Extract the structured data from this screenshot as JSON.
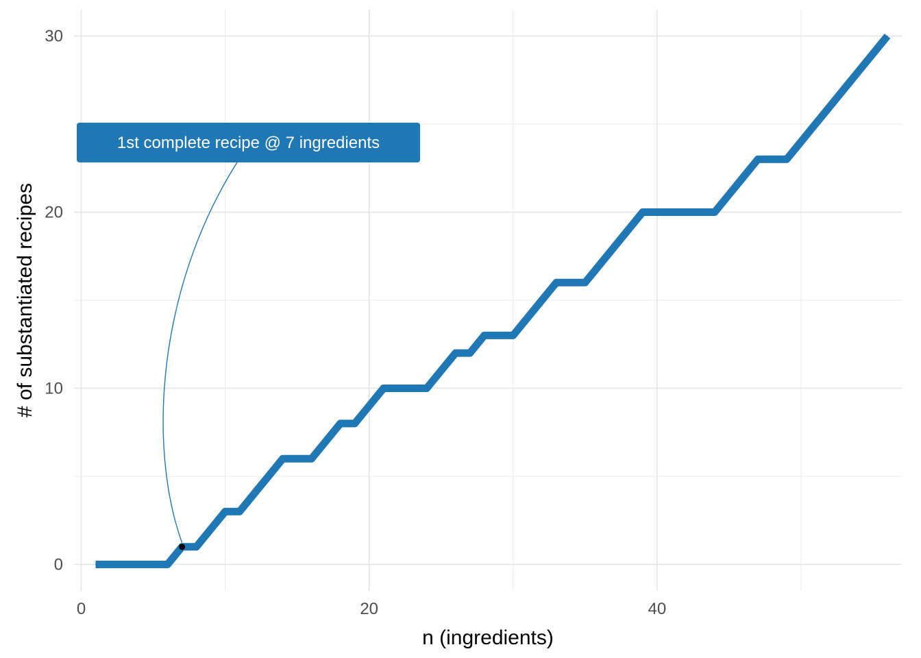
{
  "chart_data": {
    "type": "line",
    "xlabel": "n (ingredients)",
    "ylabel": "# of substantiated recipes",
    "xlim": [
      -0.5,
      57
    ],
    "ylim": [
      -1.5,
      31.5
    ],
    "x_ticks": [
      0,
      20,
      40
    ],
    "y_ticks": [
      0,
      10,
      20,
      30
    ],
    "grid": true,
    "legend": "none",
    "series": [
      {
        "color": "#1f77b4",
        "x": [
          1,
          2,
          3,
          4,
          5,
          6,
          7,
          8,
          9,
          10,
          11,
          12,
          13,
          14,
          15,
          16,
          17,
          18,
          19,
          20,
          21,
          22,
          23,
          24,
          25,
          26,
          27,
          28,
          29,
          30,
          31,
          32,
          33,
          34,
          35,
          36,
          37,
          38,
          39,
          40,
          41,
          42,
          43,
          44,
          45,
          46,
          47,
          48,
          49,
          50,
          51,
          52,
          53,
          54,
          55,
          56
        ],
        "y": [
          0,
          0,
          0,
          0,
          0,
          0,
          1,
          1,
          2,
          3,
          3,
          4,
          5,
          6,
          6,
          6,
          7,
          8,
          8,
          9,
          10,
          10,
          10,
          10,
          11,
          12,
          12,
          13,
          13,
          13,
          14,
          15,
          16,
          16,
          16,
          17,
          18,
          19,
          20,
          20,
          20,
          20,
          20,
          20,
          21,
          22,
          23,
          23,
          23,
          24,
          25,
          26,
          27,
          28,
          29,
          30
        ]
      }
    ],
    "annotation": {
      "text": "1st complete recipe @ 7 ingredients",
      "point": {
        "x": 7,
        "y": 1
      },
      "box_color": "#1f77b4",
      "point_color": "#000000"
    }
  }
}
